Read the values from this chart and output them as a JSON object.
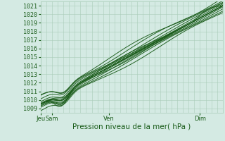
{
  "title": "Pression niveau de la mer( hPa )",
  "ylabel_values": [
    1009,
    1010,
    1011,
    1012,
    1013,
    1014,
    1015,
    1016,
    1017,
    1018,
    1019,
    1020,
    1021
  ],
  "ylim": [
    1008.5,
    1021.5
  ],
  "xlim": [
    0,
    96
  ],
  "xtick_positions": [
    0,
    6,
    36,
    84
  ],
  "xtick_labels": [
    "Jeu",
    "Sam",
    "Ven",
    "Dim"
  ],
  "background_color": "#d4eae3",
  "grid_color": "#aaccb8",
  "line_color": "#1a5c1a",
  "line_width": 0.7,
  "title_color": "#1a5c1a",
  "title_fontsize": 7.5,
  "tick_color": "#1a5c1a",
  "tick_fontsize": 6.0,
  "figsize": [
    3.2,
    2.0
  ],
  "dpi": 100
}
